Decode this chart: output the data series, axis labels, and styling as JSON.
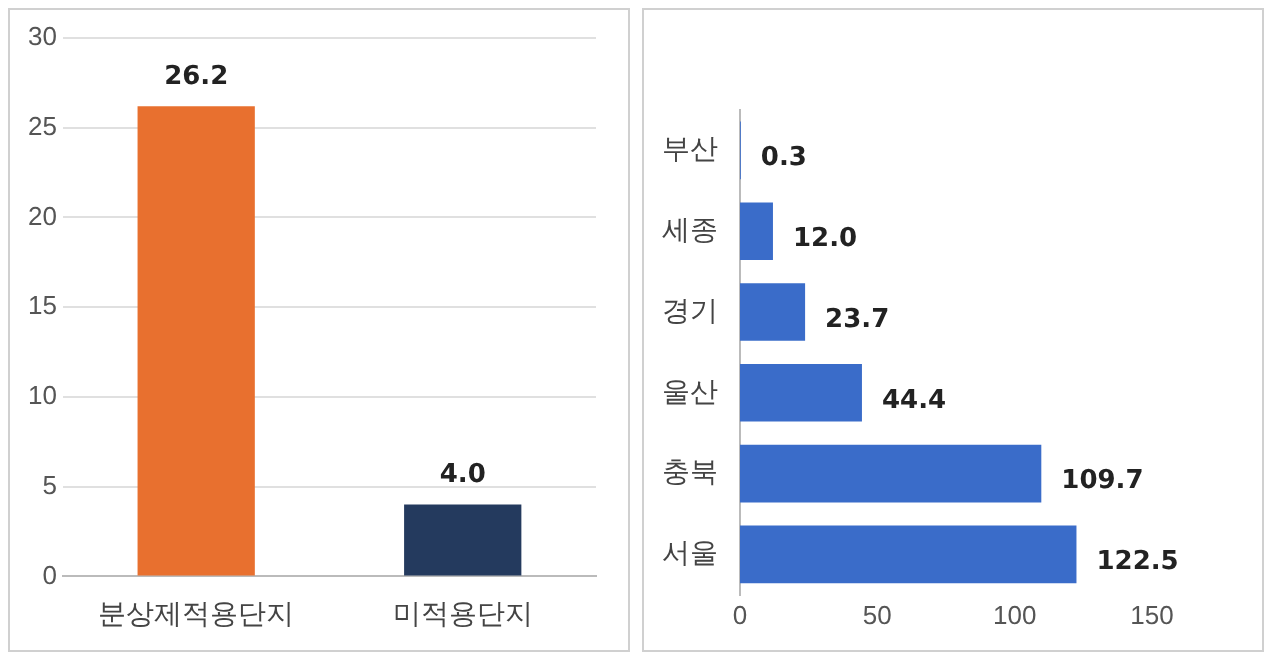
{
  "chart_data": [
    {
      "type": "bar",
      "categories": [
        "분상제적용단지",
        "미적용단지"
      ],
      "values": [
        26.2,
        4.0
      ],
      "colors": [
        "#e8702f",
        "#243a5e"
      ],
      "value_labels": [
        "26.2",
        "4.0"
      ],
      "ylim": [
        0,
        30
      ],
      "yticks": [
        0,
        5,
        10,
        15,
        20,
        25,
        30
      ],
      "grid": "y"
    },
    {
      "type": "bar",
      "orientation": "horizontal",
      "categories": [
        "부산",
        "세종",
        "경기",
        "울산",
        "충북",
        "서울"
      ],
      "values": [
        0.3,
        12.0,
        23.7,
        44.4,
        109.7,
        122.5
      ],
      "color": "#3a6cc9",
      "value_labels": [
        "0.3",
        "12.0",
        "23.7",
        "44.4",
        "109.7",
        "122.5"
      ],
      "xlim": [
        0,
        150
      ],
      "xticks": [
        0,
        50,
        100,
        150
      ],
      "grid": false
    }
  ]
}
